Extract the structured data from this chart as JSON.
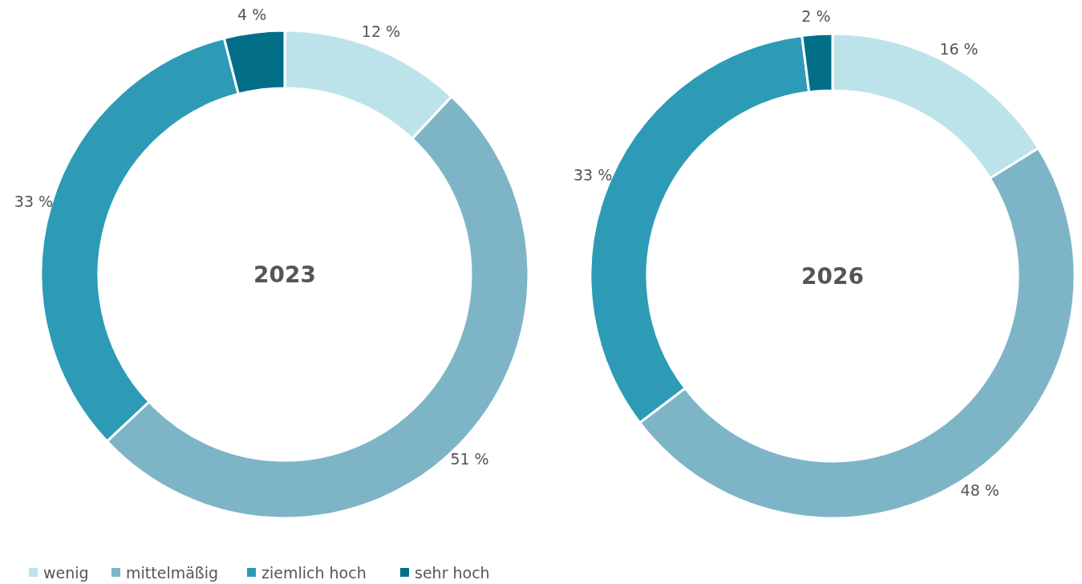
{
  "chart_data": [
    {
      "type": "donut",
      "title": "2023",
      "categories": [
        "wenig",
        "mittelmäßig",
        "ziemlich hoch",
        "sehr hoch"
      ],
      "values": [
        12,
        51,
        33,
        4
      ],
      "value_labels": [
        "12 %",
        "51 %",
        "33 %",
        "4 %"
      ],
      "colors": [
        "#bde3ea",
        "#7db5c7",
        "#2d9bb5",
        "#036e88"
      ],
      "legend": "bottom"
    },
    {
      "type": "donut",
      "title": "2026",
      "values": [
        16,
        48,
        33,
        2
      ],
      "value_labels": [
        "16 %",
        "48 %",
        "33 %",
        "2 %"
      ],
      "colors": [
        "#bde3ea",
        "#7db5c7",
        "#2d9bb5",
        "#036e88"
      ]
    }
  ]
}
